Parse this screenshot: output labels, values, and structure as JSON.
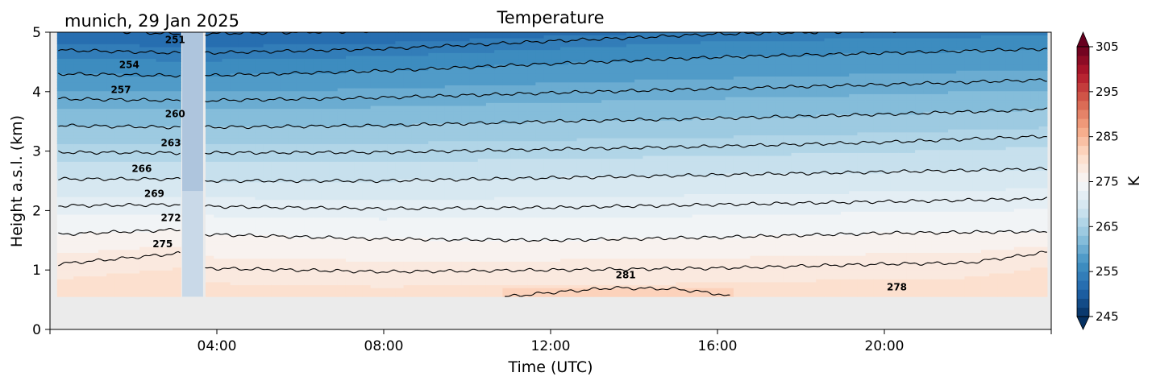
{
  "location_title": "munich, 29 Jan 2025",
  "chart_data": {
    "type": "contour",
    "title": "Temperature",
    "xlabel": "Time (UTC)",
    "ylabel": "Height a.s.l. (km)",
    "xlim_hours": [
      0,
      24
    ],
    "ylim": [
      0,
      5
    ],
    "x_ticks": [
      4,
      8,
      12,
      16,
      20
    ],
    "x_tick_labels": [
      "04:00",
      "08:00",
      "12:00",
      "16:00",
      "20:00"
    ],
    "y_ticks": [
      0,
      1,
      2,
      3,
      4,
      5
    ],
    "y_tick_labels": [
      "0",
      "1",
      "2",
      "3",
      "4",
      "5"
    ],
    "data_start_hour": 0.17,
    "data_end_hour": 23.9,
    "min_height_km": 0.55,
    "gap_hours": [
      3.17,
      3.67
    ],
    "colormap": "RdBu_r",
    "colors": {
      "cold": "#053061",
      "mid": "#f7f7f7",
      "warm": "#67001f",
      "missing": "#ebebeb",
      "contour": "#000000"
    },
    "contour_levels_K": [
      251,
      254,
      257,
      260,
      263,
      266,
      269,
      272,
      275,
      278,
      281
    ],
    "contours": [
      {
        "level": 251,
        "heights_km": [
          {
            "hour": 0.2,
            "km": 5.05
          },
          {
            "hour": 3.1,
            "km": 4.97
          },
          {
            "hour": 8,
            "km": 5.02
          },
          {
            "hour": 16,
            "km": 5.15
          }
        ]
      },
      {
        "level": 254,
        "heights_km": [
          {
            "hour": 0.2,
            "km": 4.7
          },
          {
            "hour": 3.1,
            "km": 4.65
          },
          {
            "hour": 3.7,
            "km": 4.65
          },
          {
            "hour": 8,
            "km": 4.72
          },
          {
            "hour": 12,
            "km": 4.85
          },
          {
            "hour": 16,
            "km": 4.97
          },
          {
            "hour": 20,
            "km": 5.02
          },
          {
            "hour": 23.9,
            "km": 5.06
          }
        ]
      },
      {
        "level": 257,
        "heights_km": [
          {
            "hour": 0.2,
            "km": 4.3
          },
          {
            "hour": 3.1,
            "km": 4.27
          },
          {
            "hour": 3.7,
            "km": 4.27
          },
          {
            "hour": 8,
            "km": 4.35
          },
          {
            "hour": 12,
            "km": 4.47
          },
          {
            "hour": 16,
            "km": 4.58
          },
          {
            "hour": 20,
            "km": 4.65
          },
          {
            "hour": 23.9,
            "km": 4.72
          }
        ]
      },
      {
        "level": 260,
        "heights_km": [
          {
            "hour": 0.2,
            "km": 3.88
          },
          {
            "hour": 3.1,
            "km": 3.85
          },
          {
            "hour": 3.7,
            "km": 3.85
          },
          {
            "hour": 8,
            "km": 3.9
          },
          {
            "hour": 12,
            "km": 3.98
          },
          {
            "hour": 16,
            "km": 4.05
          },
          {
            "hour": 20,
            "km": 4.12
          },
          {
            "hour": 23.9,
            "km": 4.2
          }
        ]
      },
      {
        "level": 263,
        "heights_km": [
          {
            "hour": 0.2,
            "km": 3.43
          },
          {
            "hour": 3.1,
            "km": 3.4
          },
          {
            "hour": 3.7,
            "km": 3.4
          },
          {
            "hour": 8,
            "km": 3.43
          },
          {
            "hour": 12,
            "km": 3.5
          },
          {
            "hour": 16,
            "km": 3.55
          },
          {
            "hour": 20,
            "km": 3.62
          },
          {
            "hour": 23.9,
            "km": 3.7
          }
        ]
      },
      {
        "level": 266,
        "heights_km": [
          {
            "hour": 0.2,
            "km": 2.98
          },
          {
            "hour": 3.1,
            "km": 2.97
          },
          {
            "hour": 3.7,
            "km": 2.97
          },
          {
            "hour": 8,
            "km": 2.98
          },
          {
            "hour": 12,
            "km": 3.03
          },
          {
            "hour": 16,
            "km": 3.08
          },
          {
            "hour": 20,
            "km": 3.15
          },
          {
            "hour": 23.9,
            "km": 3.25
          }
        ]
      },
      {
        "level": 269,
        "heights_km": [
          {
            "hour": 0.2,
            "km": 2.53
          },
          {
            "hour": 3.1,
            "km": 2.53
          },
          {
            "hour": 3.7,
            "km": 2.5
          },
          {
            "hour": 8,
            "km": 2.5
          },
          {
            "hour": 12,
            "km": 2.55
          },
          {
            "hour": 16,
            "km": 2.6
          },
          {
            "hour": 20,
            "km": 2.65
          },
          {
            "hour": 23.9,
            "km": 2.7
          }
        ]
      },
      {
        "level": 272,
        "heights_km": [
          {
            "hour": 0.2,
            "km": 2.08
          },
          {
            "hour": 3.1,
            "km": 2.1
          },
          {
            "hour": 3.7,
            "km": 2.07
          },
          {
            "hour": 8,
            "km": 2.03
          },
          {
            "hour": 12,
            "km": 2.05
          },
          {
            "hour": 16,
            "km": 2.1
          },
          {
            "hour": 20,
            "km": 2.15
          },
          {
            "hour": 23.9,
            "km": 2.2
          }
        ]
      },
      {
        "level": 275,
        "heights_km": [
          {
            "hour": 0.2,
            "km": 1.6
          },
          {
            "hour": 3.1,
            "km": 1.68
          },
          {
            "hour": 3.7,
            "km": 1.6
          },
          {
            "hour": 8,
            "km": 1.52
          },
          {
            "hour": 12,
            "km": 1.5
          },
          {
            "hour": 16,
            "km": 1.55
          },
          {
            "hour": 20,
            "km": 1.62
          },
          {
            "hour": 23.9,
            "km": 1.65
          }
        ]
      },
      {
        "level": 278,
        "heights_km": [
          {
            "hour": 0.2,
            "km": 1.1
          },
          {
            "hour": 3.1,
            "km": 1.28
          },
          {
            "hour": 3.7,
            "km": 1.03
          },
          {
            "hour": 8,
            "km": 0.97
          },
          {
            "hour": 12,
            "km": 1.0
          },
          {
            "hour": 16,
            "km": 1.03
          },
          {
            "hour": 20,
            "km": 1.1
          },
          {
            "hour": 22,
            "km": 1.12
          },
          {
            "hour": 23.9,
            "km": 1.3
          }
        ]
      },
      {
        "level": 281,
        "heights_km": [
          {
            "hour": 10.9,
            "km": 0.55
          },
          {
            "hour": 12,
            "km": 0.62
          },
          {
            "hour": 13.5,
            "km": 0.7
          },
          {
            "hour": 15,
            "km": 0.68
          },
          {
            "hour": 16,
            "km": 0.6
          },
          {
            "hour": 16.3,
            "km": 0.55
          }
        ]
      }
    ],
    "contour_labels": [
      {
        "text": "251",
        "hour": 3.0,
        "km": 4.82
      },
      {
        "text": "254",
        "hour": 1.9,
        "km": 4.4
      },
      {
        "text": "257",
        "hour": 1.7,
        "km": 3.98
      },
      {
        "text": "260",
        "hour": 3.0,
        "km": 3.57
      },
      {
        "text": "263",
        "hour": 2.9,
        "km": 3.08
      },
      {
        "text": "266",
        "hour": 2.2,
        "km": 2.65
      },
      {
        "text": "269",
        "hour": 2.5,
        "km": 2.23
      },
      {
        "text": "272",
        "hour": 2.9,
        "km": 1.82
      },
      {
        "text": "275",
        "hour": 2.7,
        "km": 1.38
      },
      {
        "text": "281",
        "hour": 13.8,
        "km": 0.86
      },
      {
        "text": "278",
        "hour": 20.3,
        "km": 0.66
      }
    ],
    "colorbar": {
      "label": "K",
      "min": 245,
      "max": 305,
      "step": 2,
      "ticks": [
        245,
        255,
        265,
        275,
        285,
        295,
        305
      ],
      "tick_labels": [
        "245",
        "255",
        "265",
        "275",
        "285",
        "295",
        "305"
      ],
      "extend": "both"
    }
  }
}
